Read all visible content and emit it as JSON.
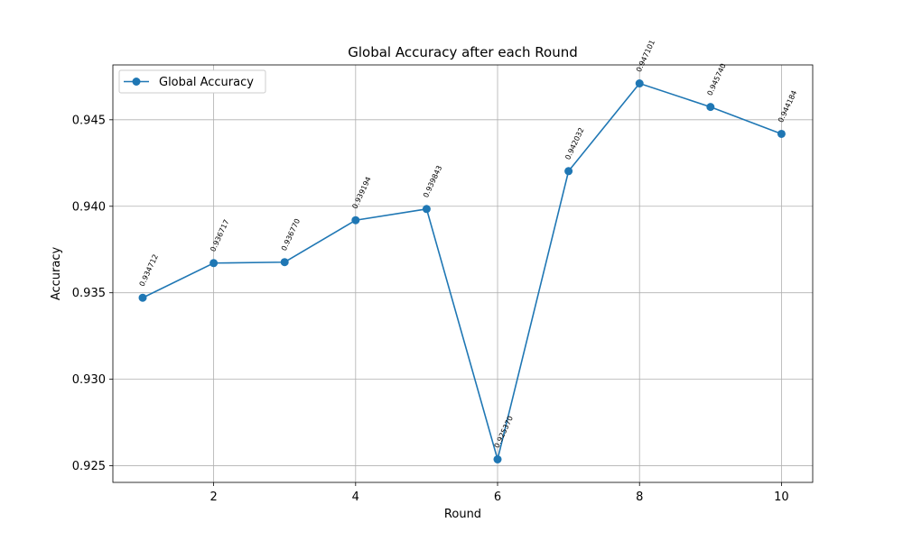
{
  "chart_data": {
    "type": "line",
    "title": "Global Accuracy after each Round",
    "xlabel": "Round",
    "ylabel": "Accuracy",
    "xlim": [
      0.58,
      10.44
    ],
    "ylim": [
      0.92404,
      0.94817
    ],
    "xticks": [
      2,
      4,
      6,
      8,
      10
    ],
    "xtick_labels": [
      "2",
      "4",
      "6",
      "8",
      "10"
    ],
    "yticks": [
      0.925,
      0.93,
      0.935,
      0.94,
      0.945
    ],
    "ytick_labels": [
      "0.925",
      "0.930",
      "0.935",
      "0.940",
      "0.945"
    ],
    "grid": true,
    "legend_position": "top-left",
    "series": [
      {
        "name": "Global Accuracy",
        "color": "#1f77b4",
        "marker": "circle",
        "x": [
          1,
          2,
          3,
          4,
          5,
          6,
          7,
          8,
          9,
          10
        ],
        "values": [
          0.934712,
          0.936717,
          0.93677,
          0.939194,
          0.939843,
          0.92537,
          0.942032,
          0.947101,
          0.94574,
          0.944184
        ],
        "labels": [
          "0.934712",
          "0.936717",
          "0.936770",
          "0.939194",
          "0.939843",
          "0.925370",
          "0.942032",
          "0.947101",
          "0.945740",
          "0.944184"
        ]
      }
    ]
  }
}
